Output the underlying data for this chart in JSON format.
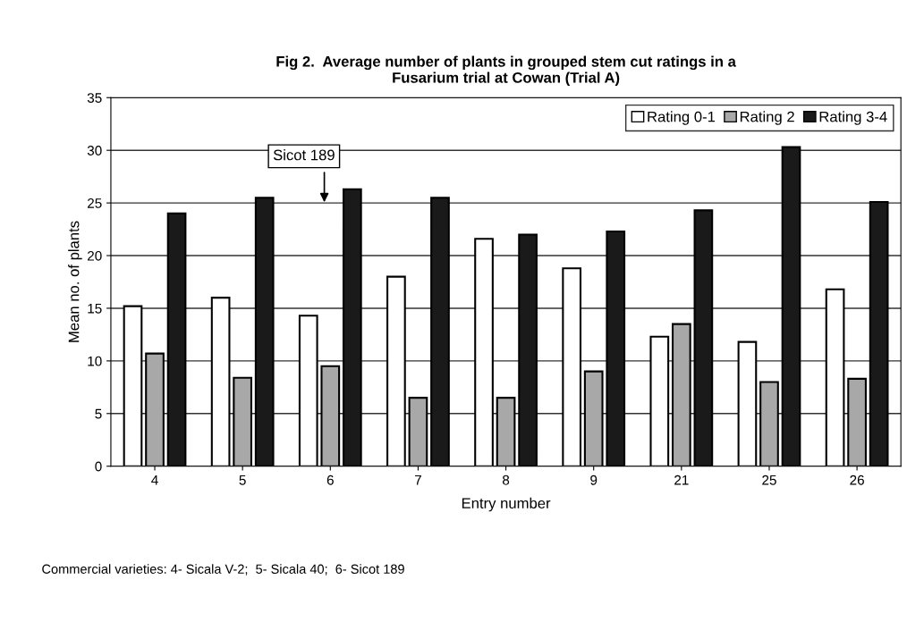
{
  "chart_data": {
    "type": "bar",
    "title": "Fig 2.  Average number of plants in grouped stem cut ratings in a\nFusarium trial at Cowan (Trial A)",
    "xlabel": "Entry number",
    "ylabel": "Mean no. of plants",
    "categories": [
      "4",
      "5",
      "6",
      "7",
      "8",
      "9",
      "21",
      "25",
      "26"
    ],
    "series": [
      {
        "name": "Rating 0-1",
        "color": "#ffffff",
        "values": [
          15.2,
          16.0,
          14.3,
          18.0,
          21.6,
          18.8,
          12.3,
          11.8,
          16.8
        ]
      },
      {
        "name": "Rating 2",
        "color": "#a8a8a8",
        "values": [
          10.7,
          8.4,
          9.5,
          6.5,
          6.5,
          9.0,
          13.5,
          8.0,
          8.3
        ]
      },
      {
        "name": "Rating 3-4",
        "color": "#1a1a1a",
        "values": [
          24.0,
          25.5,
          26.3,
          25.5,
          22.0,
          22.3,
          24.3,
          30.3,
          25.1
        ]
      }
    ],
    "ylim": [
      0,
      35
    ],
    "yticks": [
      0,
      5,
      10,
      15,
      20,
      25,
      30,
      35
    ],
    "grid": "y",
    "legend": "top right",
    "annotations": [
      "Sicot 189",
      "Commercial varieties: 4- Sicala V-2;  5- Sicala 40;  6- Sicot 189"
    ]
  }
}
